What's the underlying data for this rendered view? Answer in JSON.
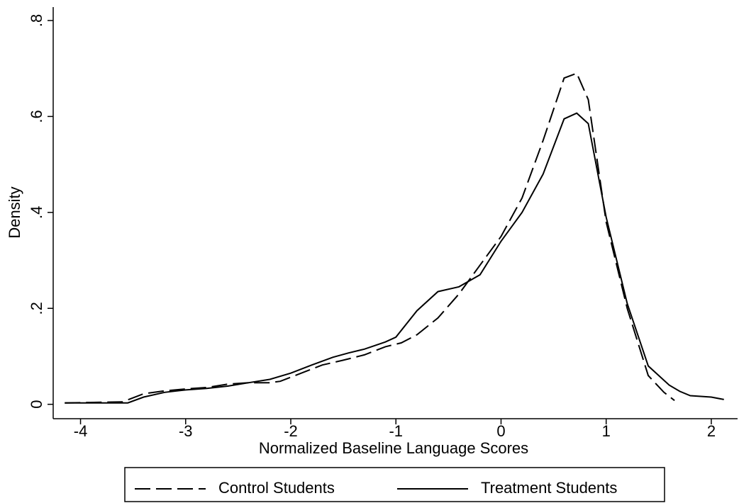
{
  "chart_data": {
    "type": "line",
    "x_label": "Normalized Baseline Language Scores",
    "y_label": "Density",
    "xlim": [
      -4.26,
      2.25
    ],
    "xticks": [
      -4,
      -3,
      -2,
      -1,
      0,
      1,
      2
    ],
    "ylim": [
      -0.03,
      0.828
    ],
    "yticks": [
      0,
      {
        "value": 0.2,
        "label": ".2"
      },
      {
        "value": 0.4,
        "label": ".4"
      },
      {
        "value": 0.6,
        "label": ".6"
      },
      {
        "value": 0.8,
        "label": ".8"
      }
    ],
    "legend": "bottom",
    "series": [
      {
        "name": "Control Students",
        "color": "#000000",
        "style": "dashed",
        "x": [
          -4.15,
          -3.6,
          -3.4,
          -3.2,
          -3.0,
          -2.8,
          -2.6,
          -2.4,
          -2.2,
          -2.1,
          -1.9,
          -1.7,
          -1.5,
          -1.3,
          -1.1,
          -0.95,
          -0.8,
          -0.6,
          -0.4,
          -0.2,
          0,
          0.2,
          0.4,
          0.6,
          0.72,
          0.83,
          1.0,
          1.2,
          1.4,
          1.55,
          1.65
        ],
        "values": [
          0.003,
          0.005,
          0.022,
          0.028,
          0.032,
          0.035,
          0.042,
          0.045,
          0.045,
          0.048,
          0.065,
          0.082,
          0.092,
          0.103,
          0.12,
          0.128,
          0.145,
          0.18,
          0.23,
          0.29,
          0.35,
          0.43,
          0.55,
          0.68,
          0.69,
          0.635,
          0.38,
          0.2,
          0.06,
          0.025,
          0.008
        ]
      },
      {
        "name": "Treatment Students",
        "color": "#000000",
        "style": "solid",
        "x": [
          -4.15,
          -3.55,
          -3.4,
          -3.2,
          -3.0,
          -2.8,
          -2.6,
          -2.4,
          -2.2,
          -2.0,
          -1.8,
          -1.6,
          -1.45,
          -1.3,
          -1.1,
          -1.0,
          -0.8,
          -0.6,
          -0.4,
          -0.2,
          0,
          0.2,
          0.4,
          0.6,
          0.72,
          0.83,
          1.0,
          1.2,
          1.4,
          1.6,
          1.7,
          1.8,
          2.0,
          2.12
        ],
        "values": [
          0.003,
          0.003,
          0.015,
          0.025,
          0.03,
          0.033,
          0.038,
          0.045,
          0.052,
          0.065,
          0.082,
          0.098,
          0.107,
          0.115,
          0.13,
          0.14,
          0.195,
          0.235,
          0.245,
          0.27,
          0.34,
          0.4,
          0.48,
          0.595,
          0.607,
          0.585,
          0.39,
          0.21,
          0.08,
          0.04,
          0.027,
          0.018,
          0.015,
          0.01
        ]
      }
    ]
  }
}
